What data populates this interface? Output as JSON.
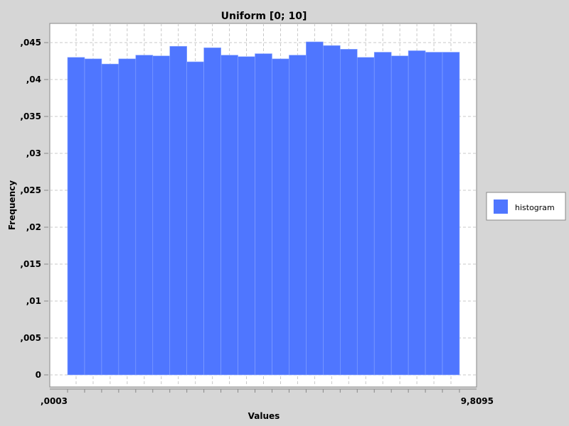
{
  "chart_data": {
    "type": "bar",
    "title": "Uniform [0; 10]",
    "xlabel": "Values",
    "ylabel": "Frequency",
    "ylim": [
      0,
      0.0475
    ],
    "grid": true,
    "legend_placement": "right",
    "y_tick_labels": [
      {
        "value": 0,
        "label": "0"
      },
      {
        "value": 0.005,
        "label": ",005"
      },
      {
        "value": 0.01,
        "label": ",01"
      },
      {
        "value": 0.015,
        "label": ",015"
      },
      {
        "value": 0.02,
        "label": ",02"
      },
      {
        "value": 0.025,
        "label": ",025"
      },
      {
        "value": 0.03,
        "label": ",03"
      },
      {
        "value": 0.035,
        "label": ",035"
      },
      {
        "value": 0.04,
        "label": ",04"
      },
      {
        "value": 0.045,
        "label": ",045"
      }
    ],
    "x_tick_labels": {
      "first": ",0003",
      "last": "9,8095"
    },
    "series": [
      {
        "name": "histogram",
        "color": "#4f76ff",
        "values": [
          0.043,
          0.0428,
          0.0421,
          0.0428,
          0.0433,
          0.0432,
          0.0445,
          0.0424,
          0.0443,
          0.0433,
          0.0431,
          0.0435,
          0.0428,
          0.0433,
          0.0451,
          0.0446,
          0.0441,
          0.043,
          0.0437,
          0.0432,
          0.0439,
          0.0437,
          0.0437
        ]
      }
    ]
  }
}
